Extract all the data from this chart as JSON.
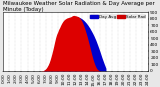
{
  "title": "Milwaukee Weather Solar Radiation & Day Average per Minute (Today)",
  "bg_color": "#e8e8e8",
  "plot_bg": "#ffffff",
  "legend_blue_label": "Day Avg",
  "legend_red_label": "Solar Rad",
  "legend_blue_color": "#0000cc",
  "legend_red_color": "#cc0000",
  "xmin": 0,
  "xmax": 1440,
  "ymin": 0,
  "ymax": 900,
  "ytick_positions": [
    0,
    100,
    200,
    300,
    400,
    500,
    600,
    700,
    800,
    900
  ],
  "xtick_positions": [
    0,
    60,
    120,
    180,
    240,
    300,
    360,
    420,
    480,
    540,
    600,
    660,
    720,
    780,
    840,
    900,
    960,
    1020,
    1080,
    1140,
    1200,
    1260,
    1320,
    1380,
    1440
  ],
  "xtick_labels": [
    "0:00",
    "1:00",
    "2:00",
    "3:00",
    "4:00",
    "5:00",
    "6:00",
    "7:00",
    "8:00",
    "9:00",
    "10:00",
    "11:00",
    "12:00",
    "13:00",
    "14:00",
    "15:00",
    "16:00",
    "17:00",
    "18:00",
    "19:00",
    "20:00",
    "21:00",
    "22:00",
    "23:00",
    "24:00"
  ],
  "vgrid_positions": [
    60,
    120,
    180,
    240,
    300,
    360,
    420,
    480,
    540,
    600,
    660,
    720,
    780,
    840,
    900,
    960,
    1020,
    1080,
    1140,
    1200,
    1260,
    1320,
    1380
  ],
  "solar_x": [
    0,
    300,
    360,
    380,
    400,
    410,
    420,
    430,
    440,
    450,
    460,
    470,
    480,
    490,
    500,
    510,
    520,
    530,
    540,
    550,
    560,
    570,
    580,
    590,
    600,
    610,
    620,
    630,
    640,
    650,
    660,
    670,
    680,
    690,
    700,
    710,
    720,
    730,
    740,
    750,
    760,
    770,
    780,
    790,
    800,
    810,
    820,
    830,
    840,
    850,
    860,
    870,
    880,
    890,
    900,
    910,
    920,
    930,
    940,
    950,
    960,
    970,
    980,
    990,
    1000,
    1010,
    1020,
    1030,
    1040,
    1060,
    1080,
    1440
  ],
  "solar_y": [
    0,
    0,
    0,
    2,
    8,
    18,
    30,
    50,
    75,
    105,
    145,
    195,
    250,
    310,
    375,
    445,
    510,
    560,
    595,
    635,
    665,
    700,
    730,
    755,
    775,
    790,
    800,
    810,
    815,
    820,
    825,
    830,
    840,
    848,
    852,
    848,
    845,
    840,
    835,
    825,
    810,
    790,
    765,
    730,
    690,
    645,
    595,
    545,
    488,
    428,
    368,
    305,
    245,
    188,
    138,
    95,
    60,
    33,
    18,
    8,
    3,
    1,
    0,
    0,
    0,
    0,
    0,
    0,
    0,
    0,
    0,
    0
  ],
  "avg_x": [
    400,
    420,
    440,
    460,
    480,
    500,
    520,
    540,
    560,
    580,
    600,
    620,
    640,
    660,
    680,
    700,
    720,
    740,
    760,
    780,
    800,
    820,
    840,
    860,
    880,
    900,
    920,
    940,
    960,
    980,
    1000,
    1020
  ],
  "avg_y": [
    5,
    18,
    55,
    120,
    205,
    310,
    420,
    510,
    570,
    620,
    665,
    715,
    758,
    790,
    812,
    828,
    835,
    830,
    818,
    800,
    775,
    742,
    702,
    655,
    600,
    540,
    470,
    388,
    300,
    205,
    120,
    40
  ],
  "solar_color": "#dd0000",
  "avg_color": "#0000cc",
  "grid_color": "#bbbbbb",
  "title_fontsize": 4.0,
  "tick_fontsize": 3.2,
  "legend_fontsize": 3.0
}
